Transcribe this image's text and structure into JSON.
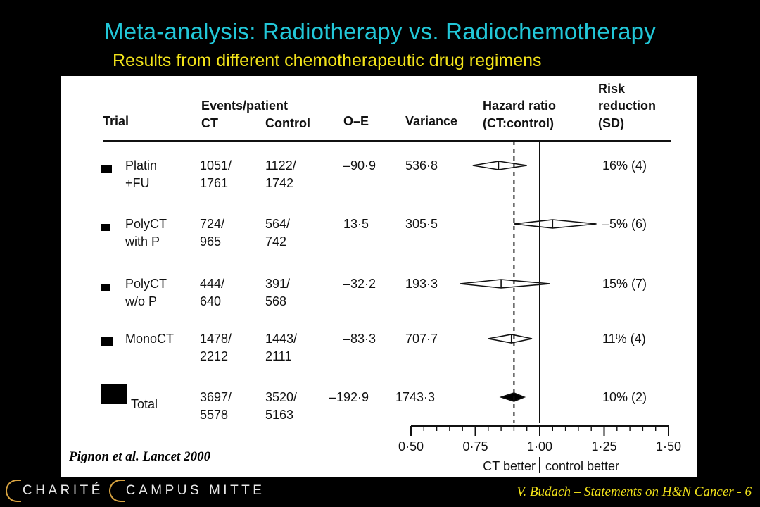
{
  "slide": {
    "title": "Meta-analysis: Radiotherapy vs. Radiochemotherapy",
    "subtitle": "Results from different chemotherapeutic drug regimens",
    "citation": "Pignon et al. Lancet 2000",
    "footer_logo_left": "CHARITÉ",
    "footer_logo_right": "CAMPUS MITTE",
    "footer_right": "V. Budach – Statements on H&N Cancer - 6"
  },
  "chart_data": {
    "type": "forest",
    "columns": {
      "trial": "Trial",
      "events_group": "Events/patient",
      "ct": "CT",
      "control": "Control",
      "oe": "O–E",
      "variance": "Variance",
      "hr_line1": "Hazard ratio",
      "hr_line2": "(CT:control)",
      "rr_line1": "Risk",
      "rr_line2": "reduction",
      "rr_line3": "(SD)"
    },
    "rows": [
      {
        "trial": [
          "Platin",
          "+FU"
        ],
        "ct": [
          "1051/",
          "1761"
        ],
        "control": [
          "1122/",
          "1742"
        ],
        "oe": "–90·9",
        "variance": "536·8",
        "rr": "16% (4)",
        "hr": 0.84,
        "ci": [
          0.74,
          0.95
        ]
      },
      {
        "trial": [
          "PolyCT",
          "with P"
        ],
        "ct": [
          "724/",
          "965"
        ],
        "control": [
          "564/",
          "742"
        ],
        "oe": "13·5",
        "variance": "305·5",
        "rr": "–5% (6)",
        "hr": 1.05,
        "ci": [
          0.9,
          1.22
        ]
      },
      {
        "trial": [
          "PolyCT",
          "w/o P"
        ],
        "ct": [
          "444/",
          "640"
        ],
        "control": [
          "391/",
          "568"
        ],
        "oe": "–32·2",
        "variance": "193·3",
        "rr": "15% (7)",
        "hr": 0.85,
        "ci": [
          0.69,
          1.04
        ]
      },
      {
        "trial": [
          "MonoCT",
          ""
        ],
        "ct": [
          "1478/",
          "2212"
        ],
        "control": [
          "1443/",
          "2111"
        ],
        "oe": "–83·3",
        "variance": "707·7",
        "rr": "11% (4)",
        "hr": 0.89,
        "ci": [
          0.8,
          0.97
        ]
      },
      {
        "trial": [
          "Total",
          ""
        ],
        "ct": [
          "3697/",
          "5578"
        ],
        "control": [
          "3520/",
          "5163"
        ],
        "oe": "–192·9",
        "variance": "1743·3",
        "rr": "10% (2)",
        "hr": 0.9,
        "ci": [
          0.85,
          0.94
        ],
        "total": true
      }
    ],
    "reference_line": 1.0,
    "overall_line": 0.9,
    "xaxis": {
      "min": 0.5,
      "max": 1.5,
      "ticks": [
        "0·50",
        "0·75",
        "1·00",
        "1·25",
        "1·50"
      ],
      "tick_values": [
        0.5,
        0.75,
        1.0,
        1.25,
        1.5
      ],
      "minor_step": 0.05
    },
    "xlabel_left": "CT better",
    "xlabel_right": "control better"
  }
}
